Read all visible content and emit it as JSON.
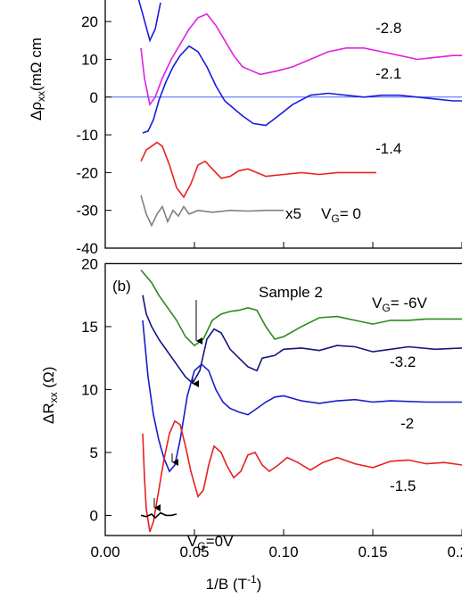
{
  "chart_data": [
    {
      "type": "line",
      "ylabel": {
        "symbol": "Δρ",
        "sub": "xx",
        "unit": "(mΩ cm"
      },
      "xlim": [
        0,
        0.2
      ],
      "ylim": [
        -40,
        25
      ],
      "yticks": [
        -40,
        -30,
        -20,
        -10,
        0,
        10,
        20
      ],
      "series": [
        {
          "color": "#1a1adc",
          "x": [
            0.018,
            0.021,
            0.025,
            0.028,
            0.031
          ],
          "values": [
            27,
            22,
            15,
            18,
            25
          ]
        },
        {
          "name": "-2.8",
          "color": "#e020e0",
          "x": [
            0.02,
            0.022,
            0.025,
            0.028,
            0.032,
            0.037,
            0.042,
            0.047,
            0.052,
            0.057,
            0.062,
            0.067,
            0.072,
            0.077,
            0.082,
            0.087,
            0.092,
            0.097,
            0.105,
            0.115,
            0.125,
            0.135,
            0.145,
            0.155,
            0.165,
            0.175,
            0.185,
            0.195,
            0.2
          ],
          "values": [
            13,
            5,
            -2,
            0,
            5,
            10,
            14,
            18,
            21,
            22,
            19,
            15,
            11,
            8,
            7,
            6,
            6.5,
            7,
            8,
            10,
            12,
            13,
            13,
            12,
            11,
            10,
            10.5,
            11,
            11
          ]
        },
        {
          "name": "-2.1",
          "color": "#1a1adc",
          "x": [
            0.021,
            0.024,
            0.027,
            0.03,
            0.034,
            0.038,
            0.042,
            0.047,
            0.052,
            0.057,
            0.062,
            0.067,
            0.072,
            0.077,
            0.083,
            0.09,
            0.097,
            0.105,
            0.115,
            0.125,
            0.135,
            0.145,
            0.155,
            0.165,
            0.175,
            0.185,
            0.195,
            0.2
          ],
          "values": [
            -9.5,
            -9,
            -6,
            -1,
            4,
            8,
            11,
            13.5,
            12,
            8,
            3,
            -1,
            -3,
            -5,
            -7,
            -7.5,
            -5,
            -2,
            0.5,
            1,
            0.5,
            0,
            0.5,
            0.5,
            0,
            -0.5,
            -1,
            -1
          ]
        },
        {
          "name": "-1.4",
          "color": "#e82020",
          "x": [
            0.02,
            0.023,
            0.026,
            0.029,
            0.032,
            0.036,
            0.04,
            0.044,
            0.048,
            0.052,
            0.056,
            0.06,
            0.065,
            0.07,
            0.075,
            0.08,
            0.085,
            0.09,
            0.1,
            0.11,
            0.12,
            0.13,
            0.14,
            0.152
          ],
          "values": [
            -17,
            -14,
            -13,
            -12,
            -13,
            -18,
            -24,
            -26.5,
            -23,
            -18,
            -17,
            -19,
            -21.5,
            -21,
            -19.5,
            -19,
            -20,
            -21,
            -20.5,
            -20,
            -20.5,
            -20,
            -20,
            -20
          ]
        },
        {
          "color": "#808080",
          "x": [
            0.02,
            0.023,
            0.026,
            0.029,
            0.032,
            0.035,
            0.038,
            0.041,
            0.044,
            0.047,
            0.052,
            0.06,
            0.07,
            0.08,
            0.09,
            0.1
          ],
          "values": [
            -26,
            -31,
            -34,
            -31,
            -29,
            -33,
            -30,
            -31.5,
            -29,
            -31,
            -30,
            -30.5,
            -30,
            -30.2,
            -30,
            -30
          ]
        }
      ],
      "annotations": {
        "scale": "x5",
        "gate_symbol": "V",
        "gate_sub": "G",
        "gate_value": "= 0"
      }
    },
    {
      "type": "line",
      "panel_label": "(b)",
      "sample": "Sample 2",
      "ylabel": {
        "symbol": "ΔR",
        "sub": "xx",
        "unit": " (Ω)"
      },
      "xlabel": {
        "main": "1/B  (T",
        "sup": "-1",
        "end": ")"
      },
      "xlim": [
        0,
        0.2
      ],
      "xticks": [
        {
          "value": 0,
          "label": "0.00"
        },
        {
          "value": 0.05,
          "label": "0.05"
        },
        {
          "value": 0.1,
          "label": "0.10"
        },
        {
          "value": 0.15,
          "label": "0.15"
        },
        {
          "value": 0.2,
          "label": "0.20"
        }
      ],
      "ylim": [
        -1.6,
        20
      ],
      "yticks": [
        0,
        5,
        10,
        15,
        20
      ],
      "series": [
        {
          "color": "#2a8a1a",
          "x": [
            0.02,
            0.023,
            0.026,
            0.03,
            0.035,
            0.04,
            0.045,
            0.05,
            0.055,
            0.06,
            0.065,
            0.07,
            0.075,
            0.08,
            0.085,
            0.09,
            0.095,
            0.1,
            0.11,
            0.12,
            0.13,
            0.14,
            0.15,
            0.16,
            0.17,
            0.18,
            0.2
          ],
          "values": [
            19.5,
            19,
            18.5,
            17.5,
            16.5,
            15.5,
            14.2,
            13.5,
            14,
            15.5,
            16,
            16.2,
            16.3,
            16.5,
            16.3,
            15,
            14,
            14.2,
            15,
            15.7,
            15.8,
            15.5,
            15.2,
            15.5,
            15.5,
            15.6,
            15.6
          ]
        },
        {
          "name": "-3.2",
          "color": "#141480",
          "x": [
            0.021,
            0.023,
            0.026,
            0.03,
            0.035,
            0.04,
            0.045,
            0.049,
            0.053,
            0.057,
            0.061,
            0.065,
            0.07,
            0.075,
            0.08,
            0.085,
            0.088,
            0.095,
            0.1,
            0.11,
            0.12,
            0.13,
            0.14,
            0.15,
            0.16,
            0.17,
            0.185,
            0.2
          ],
          "values": [
            17.5,
            16,
            15,
            14,
            13,
            12,
            11,
            10.5,
            11.5,
            14,
            14.8,
            14.5,
            13.2,
            12.5,
            11.8,
            11.5,
            12.5,
            12.7,
            13.2,
            13.3,
            13.1,
            13.5,
            13.4,
            13,
            13.2,
            13.4,
            13.2,
            13.3
          ]
        },
        {
          "name": "-2",
          "color": "#1a1acc",
          "x": [
            0.021,
            0.024,
            0.027,
            0.03,
            0.033,
            0.036,
            0.039,
            0.042,
            0.046,
            0.05,
            0.054,
            0.058,
            0.062,
            0.066,
            0.07,
            0.075,
            0.08,
            0.085,
            0.09,
            0.095,
            0.1,
            0.11,
            0.12,
            0.13,
            0.14,
            0.15,
            0.16,
            0.18,
            0.2
          ],
          "values": [
            15.5,
            11,
            8,
            6,
            4.5,
            3.5,
            4,
            6,
            9.5,
            11.5,
            12,
            11.5,
            10,
            9,
            8.5,
            8.2,
            8,
            8.5,
            9,
            9.4,
            9.5,
            9.1,
            8.9,
            9.1,
            9.2,
            9,
            9.1,
            9,
            9
          ]
        },
        {
          "name": "-1.5",
          "color": "#e82020",
          "x": [
            0.021,
            0.022,
            0.023,
            0.025,
            0.027,
            0.03,
            0.033,
            0.036,
            0.039,
            0.042,
            0.045,
            0.048,
            0.052,
            0.055,
            0.058,
            0.061,
            0.065,
            0.068,
            0.072,
            0.076,
            0.08,
            0.084,
            0.088,
            0.092,
            0.097,
            0.102,
            0.108,
            0.115,
            0.122,
            0.13,
            0.14,
            0.15,
            0.16,
            0.17,
            0.18,
            0.19,
            0.2
          ],
          "values": [
            6.5,
            3,
            0.5,
            -1.3,
            -0.5,
            2,
            4.5,
            6.5,
            7.5,
            7.2,
            5.5,
            3.5,
            1.5,
            2,
            4,
            5.5,
            5,
            4,
            3,
            3.5,
            4.8,
            5,
            4,
            3.5,
            4,
            4.6,
            4.2,
            3.6,
            4.2,
            4.6,
            4.1,
            3.8,
            4.3,
            4.4,
            4.1,
            4.2,
            4
          ]
        },
        {
          "color": "#000000",
          "x": [
            0.02,
            0.023,
            0.026,
            0.028,
            0.031,
            0.034,
            0.037,
            0.04
          ],
          "values": [
            0,
            -0.1,
            0.1,
            -0.2,
            0.2,
            0,
            0,
            0.1
          ]
        }
      ],
      "annotations": {
        "gate_symbol": "V",
        "gate_sub": "G",
        "gate_top": "= -6V",
        "gate_bottom": "=0V"
      }
    }
  ]
}
